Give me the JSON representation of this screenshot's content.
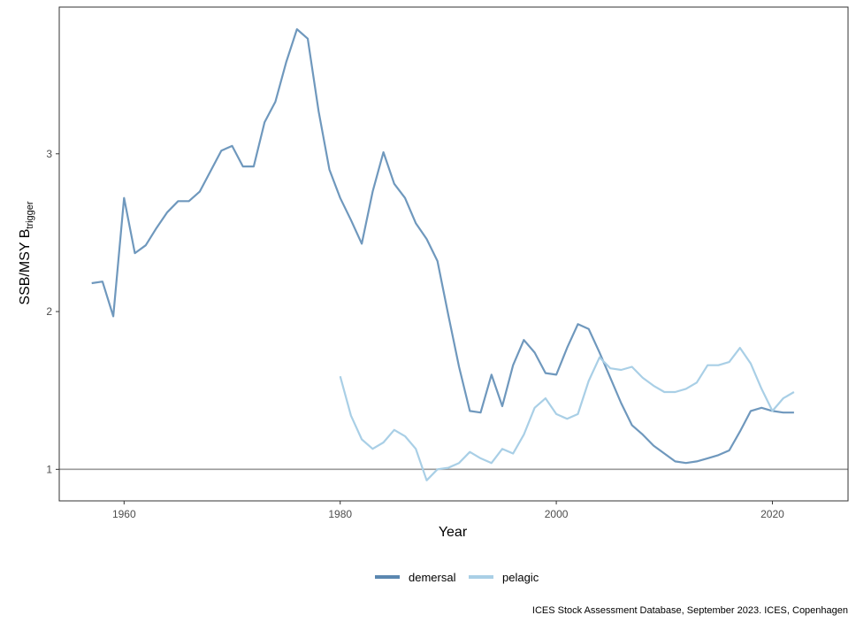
{
  "colors": {
    "demersal": "#6f98bd",
    "demersal_legend": "#5b87b0",
    "pelagic": "#a9cfe6",
    "reference_line": "#9a9a9a",
    "frame": "#333333"
  },
  "chart_data": {
    "type": "line",
    "ylabel_main": "SSB/MSY B",
    "ylabel_sub": "trigger",
    "xlabel": "Year",
    "xlim": [
      1954,
      2027
    ],
    "ylim": [
      0.8,
      3.93
    ],
    "x_ticks": [
      1960,
      1980,
      2000,
      2020
    ],
    "y_ticks": [
      1,
      2,
      3
    ],
    "reference_line": 1,
    "legend": {
      "position": "bottom",
      "labels": [
        "demersal",
        "pelagic"
      ]
    },
    "caption": "ICES Stock Assessment Database, September 2023. ICES, Copenhagen",
    "series": [
      {
        "name": "demersal",
        "x": [
          1957,
          1958,
          1959,
          1960,
          1961,
          1962,
          1963,
          1964,
          1965,
          1966,
          1967,
          1968,
          1969,
          1970,
          1971,
          1972,
          1973,
          1974,
          1975,
          1976,
          1977,
          1978,
          1979,
          1980,
          1981,
          1982,
          1983,
          1984,
          1985,
          1986,
          1987,
          1988,
          1989,
          1990,
          1991,
          1992,
          1993,
          1994,
          1995,
          1996,
          1997,
          1998,
          1999,
          2000,
          2001,
          2002,
          2003,
          2004,
          2005,
          2006,
          2007,
          2008,
          2009,
          2010,
          2011,
          2012,
          2013,
          2014,
          2015,
          2016,
          2017,
          2018,
          2019,
          2020,
          2021,
          2022
        ],
        "y": [
          2.18,
          2.19,
          1.97,
          2.72,
          2.37,
          2.42,
          2.53,
          2.63,
          2.7,
          2.7,
          2.76,
          2.89,
          3.02,
          3.05,
          2.92,
          2.92,
          3.2,
          3.33,
          3.58,
          3.79,
          3.73,
          3.27,
          2.9,
          2.72,
          2.58,
          2.43,
          2.76,
          3.01,
          2.81,
          2.72,
          2.56,
          2.46,
          2.32,
          1.98,
          1.65,
          1.37,
          1.36,
          1.6,
          1.4,
          1.66,
          1.82,
          1.74,
          1.61,
          1.6,
          1.77,
          1.92,
          1.89,
          1.74,
          1.58,
          1.42,
          1.28,
          1.22,
          1.15,
          1.1,
          1.05,
          1.04,
          1.05,
          1.07,
          1.09,
          1.12,
          1.24,
          1.37,
          1.39,
          1.37,
          1.36,
          1.36
        ]
      },
      {
        "name": "pelagic",
        "x": [
          1980,
          1981,
          1982,
          1983,
          1984,
          1985,
          1986,
          1987,
          1988,
          1989,
          1990,
          1991,
          1992,
          1993,
          1994,
          1995,
          1996,
          1997,
          1998,
          1999,
          2000,
          2001,
          2002,
          2003,
          2004,
          2005,
          2006,
          2007,
          2008,
          2009,
          2010,
          2011,
          2012,
          2013,
          2014,
          2015,
          2016,
          2017,
          2018,
          2019,
          2020,
          2021,
          2022
        ],
        "y": [
          1.59,
          1.34,
          1.19,
          1.13,
          1.17,
          1.25,
          1.21,
          1.13,
          0.93,
          1.0,
          1.01,
          1.04,
          1.11,
          1.07,
          1.04,
          1.13,
          1.1,
          1.22,
          1.39,
          1.45,
          1.35,
          1.32,
          1.35,
          1.56,
          1.71,
          1.64,
          1.63,
          1.65,
          1.58,
          1.53,
          1.49,
          1.49,
          1.51,
          1.55,
          1.66,
          1.66,
          1.68,
          1.77,
          1.67,
          1.51,
          1.37,
          1.45,
          1.49
        ]
      }
    ]
  }
}
